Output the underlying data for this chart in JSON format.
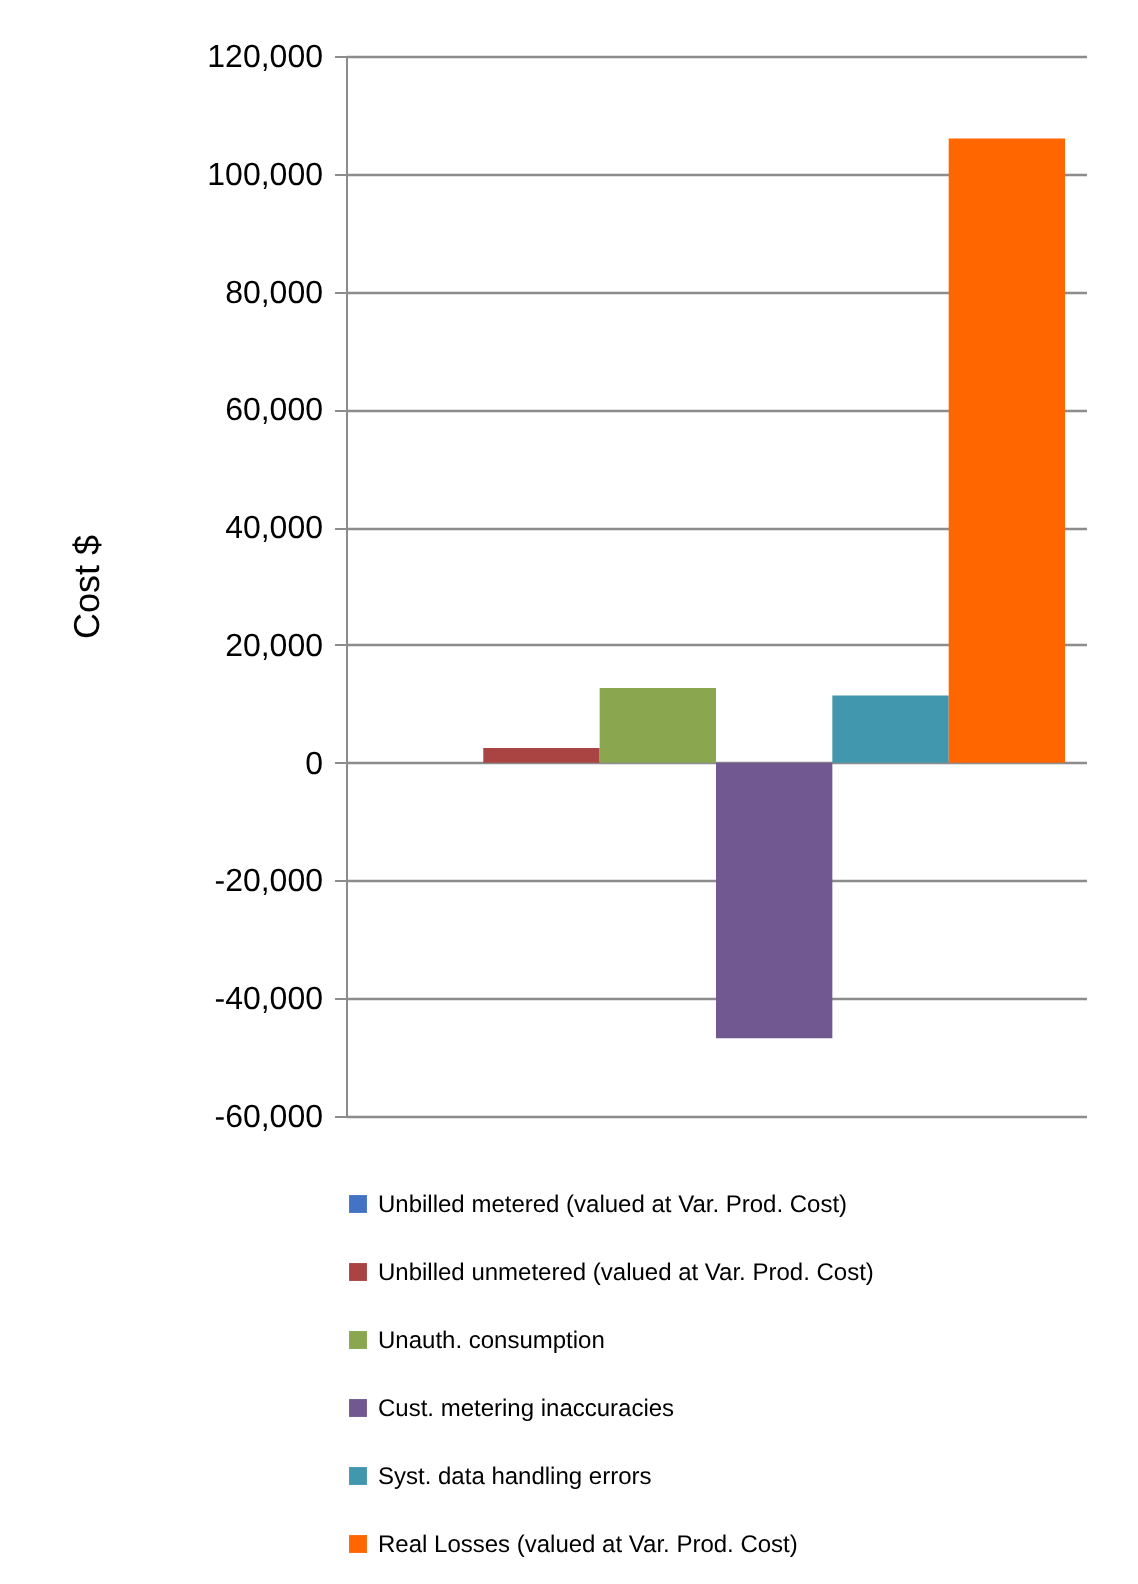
{
  "chart_data": {
    "type": "bar",
    "ylabel": "Cost $",
    "categories": [
      null
    ],
    "series": [
      {
        "name": "Unbilled metered (valued at Var. Prod. Cost)",
        "color": "#4472c4",
        "values": [
          0
        ]
      },
      {
        "name": "Unbilled unmetered (valued at Var. Prod. Cost)",
        "color": "#a94442",
        "values": [
          2500
        ]
      },
      {
        "name": "Unauth. consumption",
        "color": "#8aa64e",
        "values": [
          12700
        ]
      },
      {
        "name": "Cust. metering inaccuracies",
        "color": "#715890",
        "values": [
          -46800
        ]
      },
      {
        "name": "Syst. data handling errors",
        "color": "#4197ae",
        "values": [
          11400
        ]
      },
      {
        "name": "Real Losses (valued at Var. Prod. Cost)",
        "color": "#ff6600",
        "values": [
          106000
        ]
      }
    ],
    "ylim": [
      -60000,
      120000
    ],
    "yticks": [
      {
        "value": -60000,
        "label": "-60,000"
      },
      {
        "value": -40000,
        "label": "-40,000"
      },
      {
        "value": -20000,
        "label": "-20,000"
      },
      0,
      {
        "value": 20000,
        "label": "20,000"
      },
      {
        "value": 40000,
        "label": "40,000"
      },
      {
        "value": 60000,
        "label": "60,000"
      },
      {
        "value": 80000,
        "label": "80,000"
      },
      {
        "value": 100000,
        "label": "100,000"
      },
      {
        "value": 120000,
        "label": "120,000"
      }
    ],
    "grid": "y",
    "legend": "bottom"
  }
}
